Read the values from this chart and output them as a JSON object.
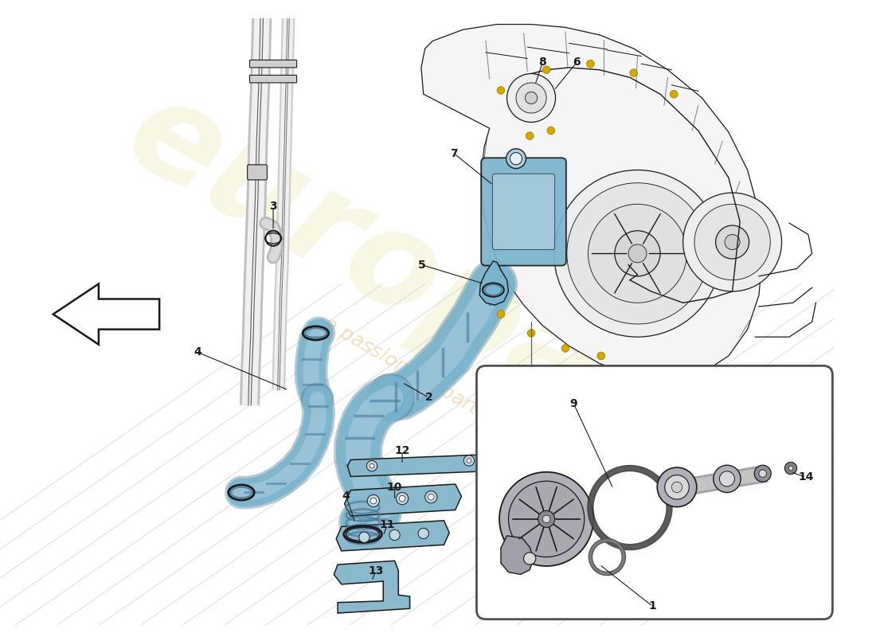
{
  "background_color": "#ffffff",
  "line_color": "#1a1a1a",
  "blue_hose_color": "#7ab4cc",
  "blue_hose_dark": "#4a7a99",
  "blue_hose_light": "#b0d0e0",
  "bracket_color": "#8ab8cc",
  "bracket_light": "#c0d8e4",
  "engine_fill": "#f5f5f5",
  "engine_stroke": "#222222",
  "gray_metal": "#b0b0b8",
  "gray_light": "#d8d8d8",
  "gray_dark": "#888890",
  "watermark_yellow": "#c8c020",
  "watermark_orange": "#d09020",
  "label_fontsize": 10,
  "lw": 0.9
}
